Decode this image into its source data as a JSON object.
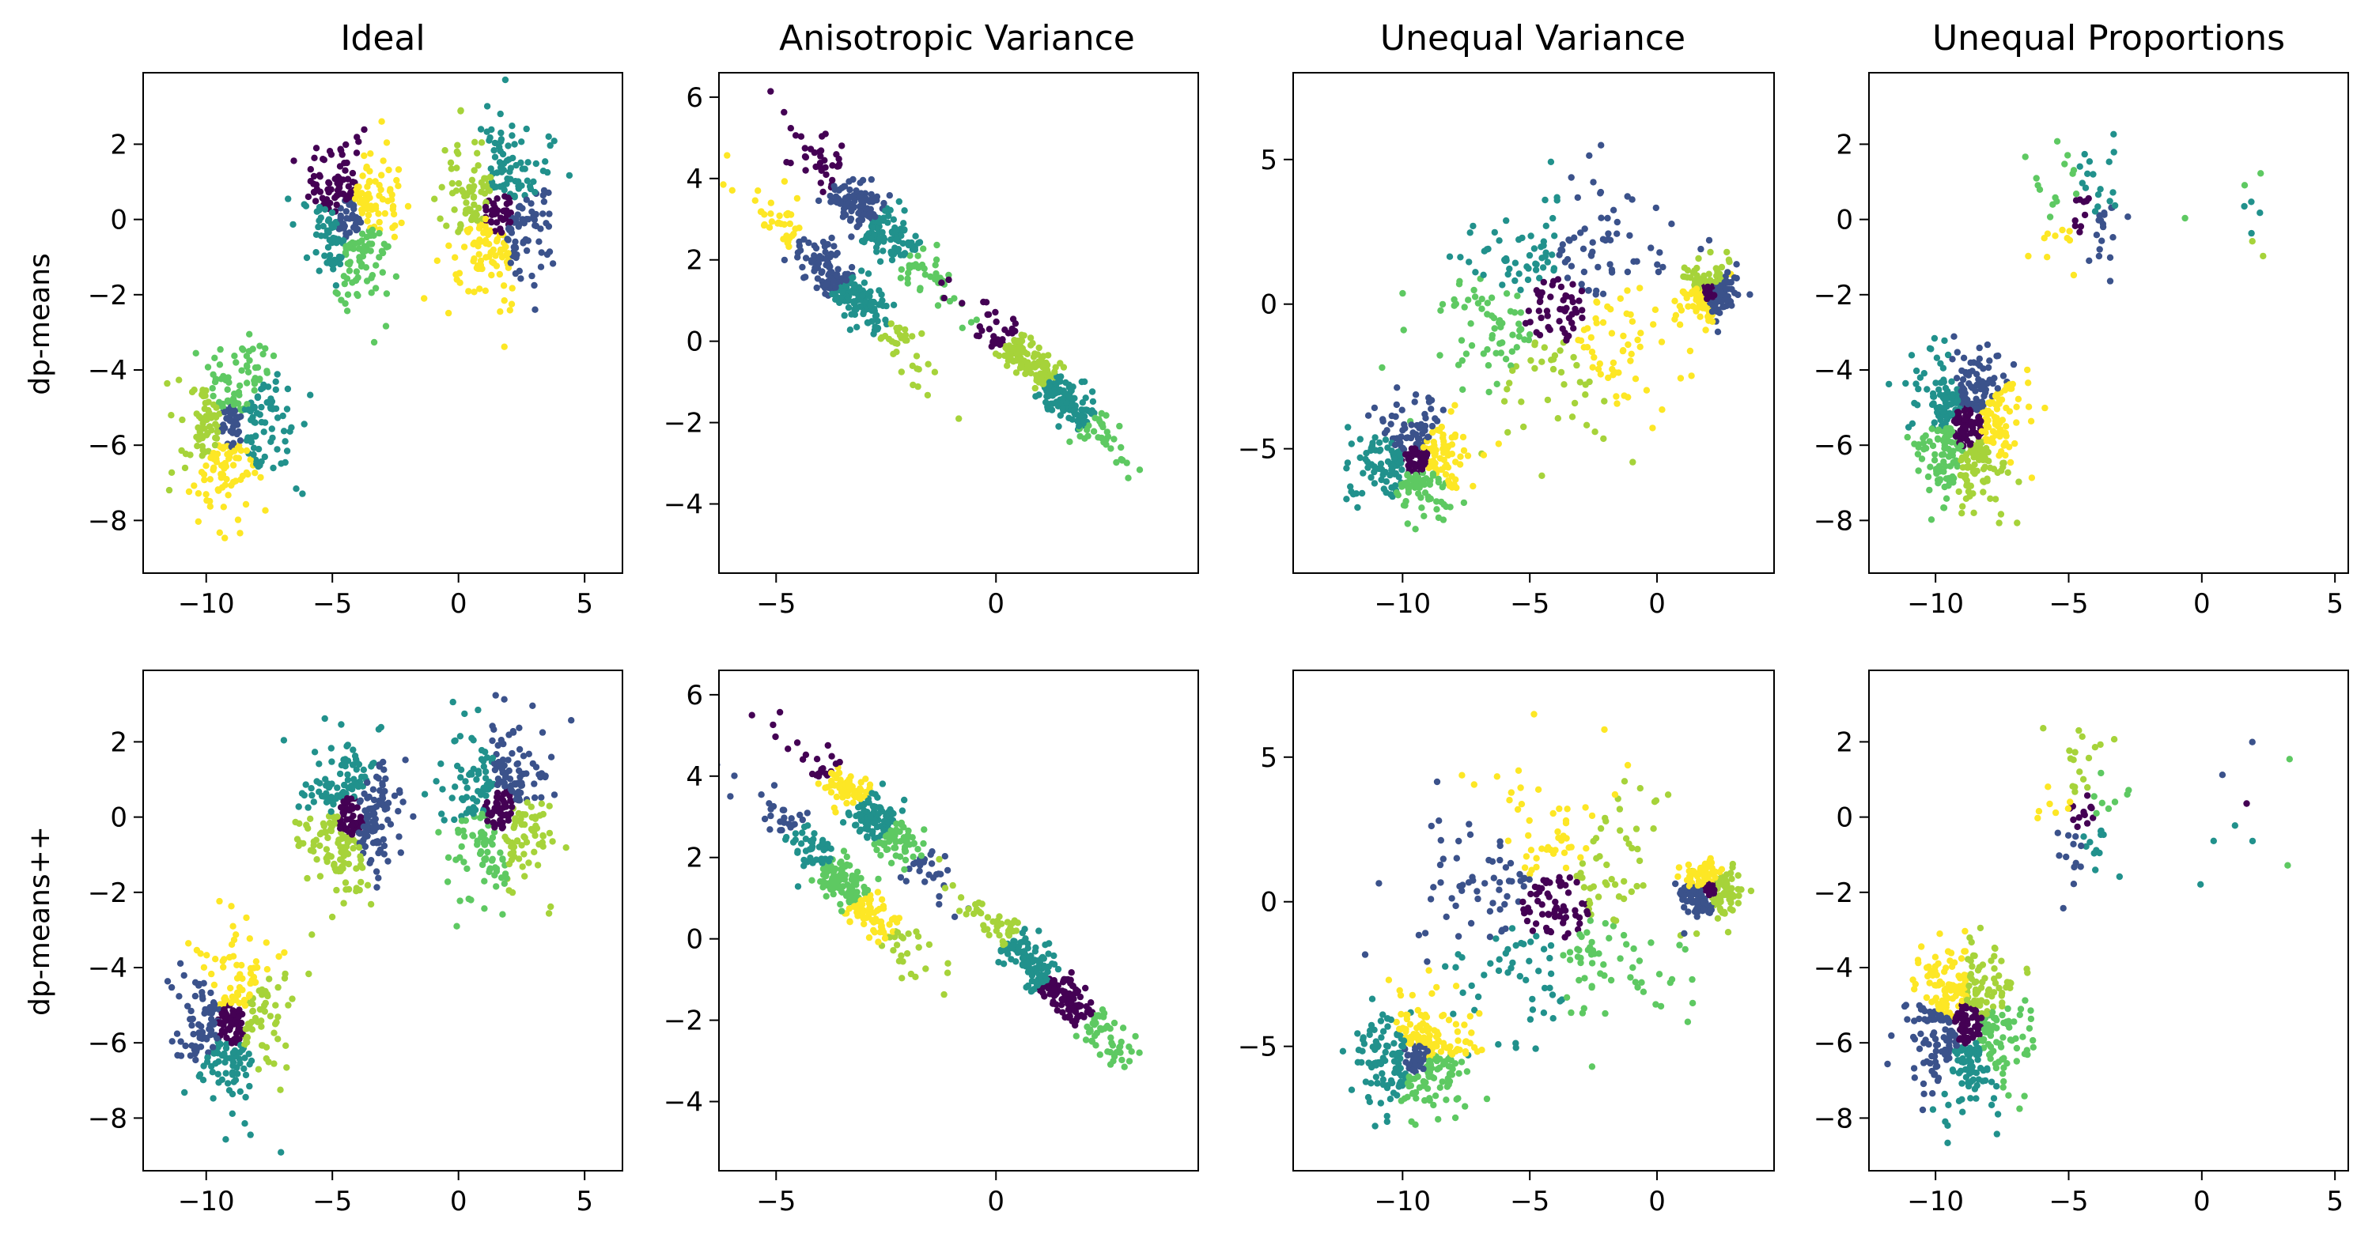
{
  "figure": {
    "column_titles": [
      "Ideal",
      "Anisotropic Variance",
      "Unequal Variance",
      "Unequal Proportions"
    ],
    "row_labels": [
      "dp-means",
      "dp-means++"
    ]
  },
  "colormap": [
    "#440154",
    "#3b528b",
    "#21918c",
    "#5ec962",
    "#a6d33a",
    "#fde725"
  ],
  "chart_data": [
    {
      "type": "scatter",
      "row": "dp-means",
      "column": "Ideal",
      "xlim": [
        -12.5,
        6.5
      ],
      "ylim": [
        -9.4,
        3.9
      ],
      "xticks": [
        -10,
        -5,
        0,
        5
      ],
      "yticks": [
        -8,
        -6,
        -4,
        -2,
        0,
        2
      ],
      "clusters": [
        {
          "cx": -4.3,
          "cy": 0.0,
          "sx": 0.9,
          "sy": 1.0,
          "n": 320,
          "palette": [
            1,
            0,
            2,
            3,
            5
          ]
        },
        {
          "cx": 1.6,
          "cy": 0.2,
          "sx": 1.0,
          "sy": 1.1,
          "n": 340,
          "palette": [
            0,
            1,
            2,
            4,
            5
          ]
        },
        {
          "cx": -9.0,
          "cy": -5.5,
          "sx": 1.0,
          "sy": 1.0,
          "n": 320,
          "palette": [
            1,
            2,
            3,
            4,
            5
          ]
        }
      ]
    },
    {
      "type": "scatter",
      "row": "dp-means",
      "column": "Anisotropic Variance",
      "xlim": [
        -6.3,
        4.6
      ],
      "ylim": [
        -5.7,
        6.6
      ],
      "xticks": [
        -5,
        0
      ],
      "yticks": [
        -4,
        -2,
        0,
        2,
        4,
        6
      ],
      "clusters": [
        {
          "cx": -2.8,
          "cy": 3.0,
          "ux": 0.9,
          "uy": -1.0,
          "s1": 1.1,
          "s2": 0.25,
          "n": 260,
          "palette": [
            0,
            1,
            2,
            3
          ]
        },
        {
          "cx": -3.5,
          "cy": 1.4,
          "ux": 0.9,
          "uy": -1.0,
          "s1": 1.3,
          "s2": 0.25,
          "n": 260,
          "palette": [
            5,
            1,
            2,
            4
          ]
        },
        {
          "cx": 1.2,
          "cy": -1.0,
          "ux": 0.9,
          "uy": -1.0,
          "s1": 1.2,
          "s2": 0.22,
          "n": 300,
          "palette": [
            0,
            4,
            2,
            3
          ]
        }
      ]
    },
    {
      "type": "scatter",
      "row": "dp-means",
      "column": "Unequal Variance",
      "xlim": [
        -14.3,
        4.6
      ],
      "ylim": [
        -9.3,
        8.0
      ],
      "xticks": [
        -10,
        -5,
        0
      ],
      "yticks": [
        -5,
        0,
        5
      ],
      "clusters": [
        {
          "cx": -4.0,
          "cy": -0.2,
          "sx": 2.4,
          "sy": 2.1,
          "n": 330,
          "palette": [
            0,
            1,
            2,
            3,
            4,
            5
          ]
        },
        {
          "cx": 2.0,
          "cy": 0.4,
          "sx": 0.55,
          "sy": 0.5,
          "n": 200,
          "palette": [
            0,
            1,
            4,
            5
          ]
        },
        {
          "cx": -9.5,
          "cy": -5.4,
          "sx": 1.0,
          "sy": 0.9,
          "n": 320,
          "palette": [
            0,
            1,
            2,
            3,
            5
          ]
        }
      ]
    },
    {
      "type": "scatter",
      "row": "dp-means",
      "column": "Unequal Proportions",
      "xlim": [
        -12.5,
        5.5
      ],
      "ylim": [
        -9.4,
        3.9
      ],
      "xticks": [
        -10,
        -5,
        0,
        5
      ],
      "yticks": [
        -8,
        -6,
        -4,
        -2,
        0,
        2
      ],
      "clusters": [
        {
          "cx": -4.5,
          "cy": 0.1,
          "sx": 0.9,
          "sy": 1.0,
          "n": 70,
          "palette": [
            0,
            1,
            2,
            3,
            5
          ]
        },
        {
          "cx": 2.0,
          "cy": 0.2,
          "sx": 1.0,
          "sy": 1.1,
          "n": 9,
          "palette": [
            2,
            3,
            4
          ]
        },
        {
          "cx": -8.8,
          "cy": -5.5,
          "sx": 1.0,
          "sy": 1.0,
          "n": 480,
          "palette": [
            0,
            1,
            2,
            3,
            4,
            5
          ]
        }
      ]
    },
    {
      "type": "scatter",
      "row": "dp-means++",
      "column": "Ideal",
      "xlim": [
        -12.5,
        6.5
      ],
      "ylim": [
        -9.4,
        3.9
      ],
      "xticks": [
        -10,
        -5,
        0,
        5
      ],
      "yticks": [
        -8,
        -6,
        -4,
        -2,
        0,
        2
      ],
      "clusters": [
        {
          "cx": -4.3,
          "cy": 0.0,
          "sx": 0.9,
          "sy": 1.0,
          "n": 320,
          "palette": [
            0,
            1,
            2,
            4
          ]
        },
        {
          "cx": 1.6,
          "cy": 0.2,
          "sx": 1.0,
          "sy": 1.1,
          "n": 340,
          "palette": [
            0,
            1,
            2,
            3,
            4
          ]
        },
        {
          "cx": -9.0,
          "cy": -5.5,
          "sx": 1.0,
          "sy": 1.0,
          "n": 320,
          "palette": [
            0,
            1,
            2,
            4,
            5
          ]
        }
      ]
    },
    {
      "type": "scatter",
      "row": "dp-means++",
      "column": "Anisotropic Variance",
      "xlim": [
        -6.3,
        4.6
      ],
      "ylim": [
        -5.7,
        6.6
      ],
      "xticks": [
        -5,
        0
      ],
      "yticks": [
        -4,
        -2,
        0,
        2,
        4,
        6
      ],
      "clusters": [
        {
          "cx": -2.8,
          "cy": 3.0,
          "ux": 0.9,
          "uy": -1.0,
          "s1": 1.1,
          "s2": 0.25,
          "n": 260,
          "palette": [
            0,
            5,
            2,
            3,
            1
          ]
        },
        {
          "cx": -3.5,
          "cy": 1.4,
          "ux": 0.9,
          "uy": -1.0,
          "s1": 1.3,
          "s2": 0.25,
          "n": 260,
          "palette": [
            1,
            2,
            3,
            5,
            4
          ]
        },
        {
          "cx": 1.2,
          "cy": -1.0,
          "ux": 0.9,
          "uy": -1.0,
          "s1": 1.2,
          "s2": 0.22,
          "n": 300,
          "palette": [
            4,
            2,
            0,
            3
          ]
        }
      ]
    },
    {
      "type": "scatter",
      "row": "dp-means++",
      "column": "Unequal Variance",
      "xlim": [
        -14.3,
        4.6
      ],
      "ylim": [
        -9.3,
        8.0
      ],
      "xticks": [
        -10,
        -5,
        0
      ],
      "yticks": [
        -5,
        0,
        5
      ],
      "clusters": [
        {
          "cx": -4.0,
          "cy": -0.2,
          "sx": 2.4,
          "sy": 2.1,
          "n": 330,
          "palette": [
            0,
            1,
            2,
            3,
            4,
            5
          ]
        },
        {
          "cx": 2.0,
          "cy": 0.4,
          "sx": 0.55,
          "sy": 0.5,
          "n": 200,
          "palette": [
            0,
            1,
            4,
            5
          ]
        },
        {
          "cx": -9.5,
          "cy": -5.4,
          "sx": 1.0,
          "sy": 0.9,
          "n": 320,
          "palette": [
            1,
            2,
            3,
            5
          ]
        }
      ]
    },
    {
      "type": "scatter",
      "row": "dp-means++",
      "column": "Unequal Proportions",
      "xlim": [
        -12.5,
        5.5
      ],
      "ylim": [
        -9.4,
        3.9
      ],
      "xticks": [
        -10,
        -5,
        0,
        5
      ],
      "yticks": [
        -8,
        -6,
        -4,
        -2,
        0,
        2
      ],
      "clusters": [
        {
          "cx": -4.5,
          "cy": 0.1,
          "sx": 0.9,
          "sy": 1.0,
          "n": 70,
          "palette": [
            0,
            1,
            2,
            3,
            4,
            5
          ]
        },
        {
          "cx": 2.0,
          "cy": 0.2,
          "sx": 1.0,
          "sy": 1.1,
          "n": 9,
          "palette": [
            0,
            1,
            2,
            3
          ]
        },
        {
          "cx": -8.8,
          "cy": -5.5,
          "sx": 1.0,
          "sy": 1.0,
          "n": 480,
          "palette": [
            0,
            1,
            2,
            3,
            4,
            5
          ]
        }
      ]
    }
  ]
}
